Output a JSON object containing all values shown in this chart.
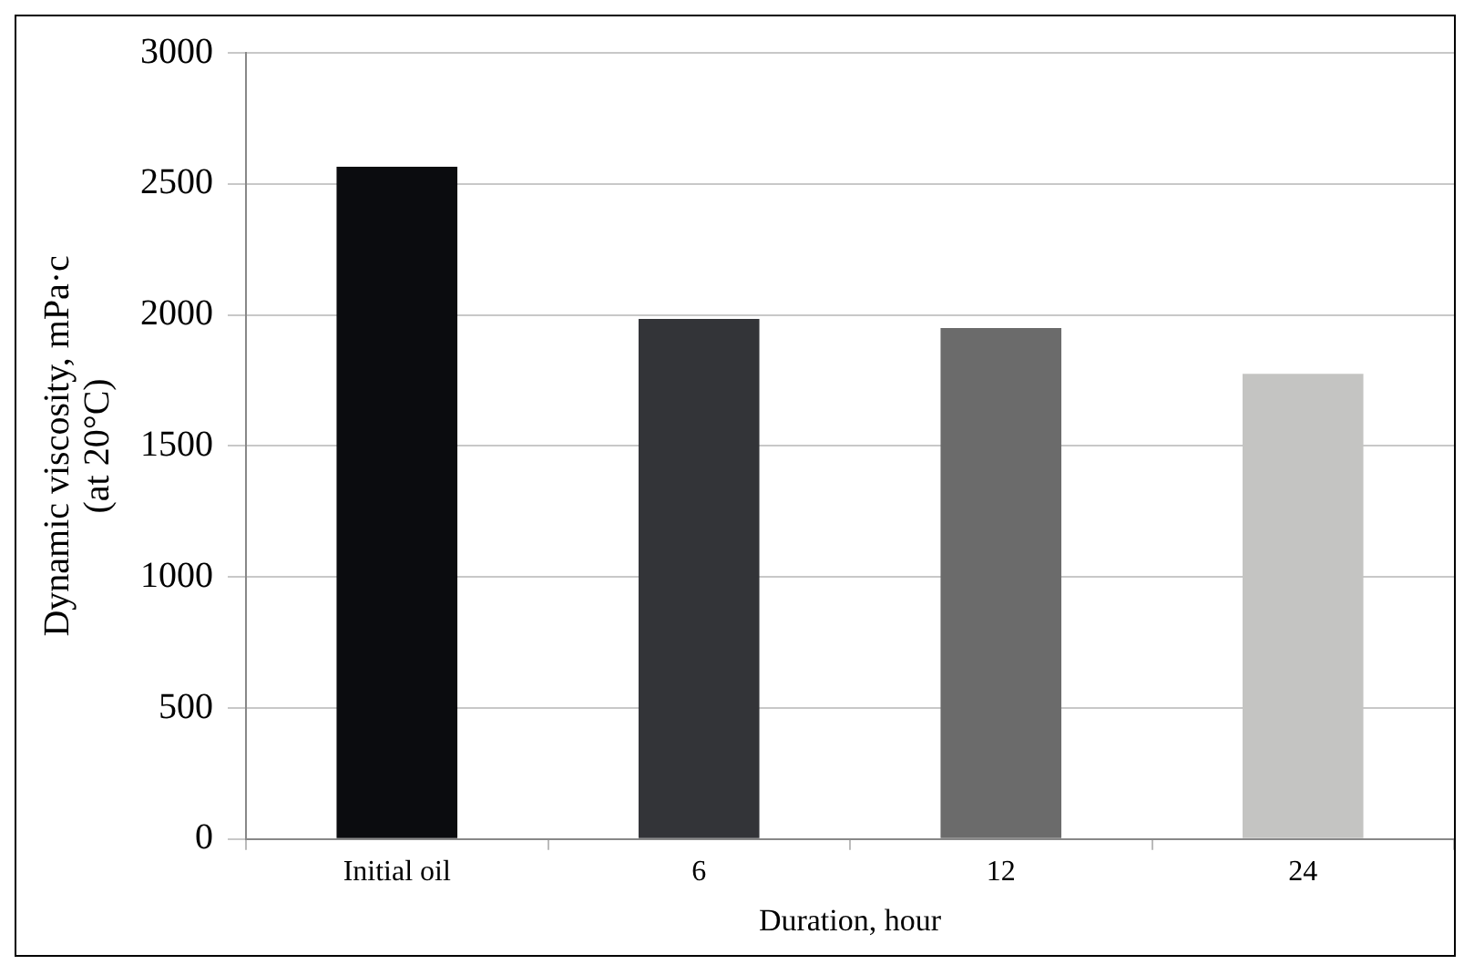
{
  "chart_data": {
    "type": "bar",
    "xlabel": "Duration, hour",
    "ylabel": "Dynamic viscosity, mPa·c\n(at 20°C)",
    "categories": [
      "Initial oil",
      "6",
      "12",
      "24"
    ],
    "values": [
      2565,
      1985,
      1950,
      1775
    ],
    "colors": [
      "#0b0c0f",
      "#333438",
      "#6b6b6b",
      "#c4c4c2"
    ],
    "ylim": [
      0,
      3000
    ],
    "yticks": [
      0,
      500,
      1000,
      1500,
      2000,
      2500,
      3000
    ],
    "grid": "y",
    "legend": false
  }
}
